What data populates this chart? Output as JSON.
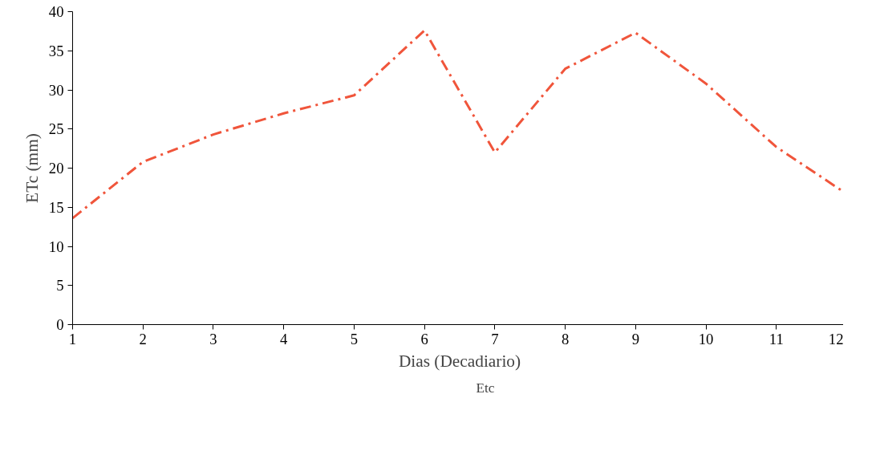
{
  "chart_data": {
    "type": "line",
    "xlabel": "Dias (Decadiario)",
    "ylabel": "ETc (mm)",
    "x": [
      1,
      2,
      3,
      4,
      5,
      6,
      7,
      8,
      9,
      10,
      11,
      12
    ],
    "series": [
      {
        "name": "Etc",
        "color": "#f0553b",
        "values": [
          13.6,
          20.8,
          24.3,
          27.0,
          29.3,
          37.6,
          22.0,
          32.7,
          37.3,
          30.8,
          22.7,
          16.7
        ]
      }
    ],
    "xlim": [
      1,
      12
    ],
    "xticks": [
      1,
      2,
      3,
      4,
      5,
      6,
      7,
      8,
      9,
      10,
      11,
      12
    ],
    "ylim": [
      0,
      40
    ],
    "yticks": [
      0,
      5,
      10,
      15,
      20,
      25,
      30,
      35,
      40
    ],
    "grid": false,
    "legend": "bottom",
    "marker": "none",
    "line_style": "dashdot"
  }
}
